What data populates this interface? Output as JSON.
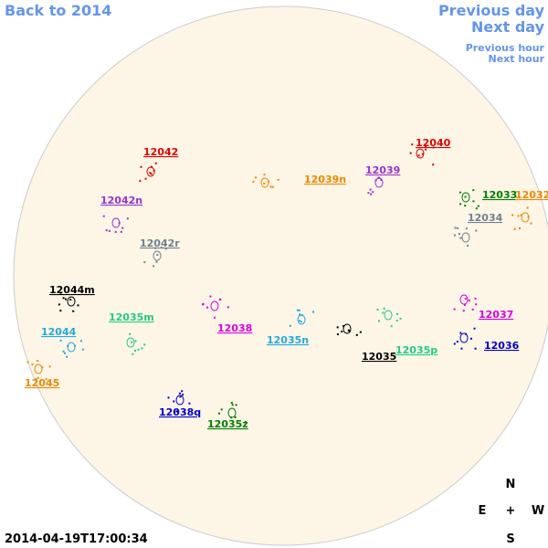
{
  "nav": {
    "back": "Back to 2014",
    "previous_day": "Previous day",
    "next_day": "Next day",
    "previous_hour": "Previous hour",
    "next_hour": "Next hour"
  },
  "timestamp": "2014-04-19T17:00:34",
  "compass": {
    "north": "N",
    "east": "E",
    "center": "+",
    "west": "W",
    "south": "S"
  },
  "regions": [
    {
      "label": "12042",
      "color": "#e00000"
    },
    {
      "label": "12040",
      "color": "#e00000"
    },
    {
      "label": "12039",
      "color": "#9933cc"
    },
    {
      "label": "12039n",
      "color": "#ee8800"
    },
    {
      "label": "12033",
      "color": "#008000"
    },
    {
      "label": "12032",
      "color": "#ee8800"
    },
    {
      "label": "12042n",
      "color": "#9933cc"
    },
    {
      "label": "12034",
      "color": "#708090"
    },
    {
      "label": "12042r",
      "color": "#708090"
    },
    {
      "label": "12044m",
      "color": "#000000"
    },
    {
      "label": "12037",
      "color": "#dd00dd"
    },
    {
      "label": "12035m",
      "color": "#22cc88"
    },
    {
      "label": "12038",
      "color": "#dd00dd"
    },
    {
      "label": "12044",
      "color": "#22aadd"
    },
    {
      "label": "12035n",
      "color": "#22aadd"
    },
    {
      "label": "12036",
      "color": "#0000cc"
    },
    {
      "label": "12035p",
      "color": "#22cc88"
    },
    {
      "label": "12035",
      "color": "#000000"
    },
    {
      "label": "12045",
      "color": "#ee8800"
    },
    {
      "label": "12038q",
      "color": "#0000cc"
    },
    {
      "label": "12035z",
      "color": "#008000"
    }
  ]
}
